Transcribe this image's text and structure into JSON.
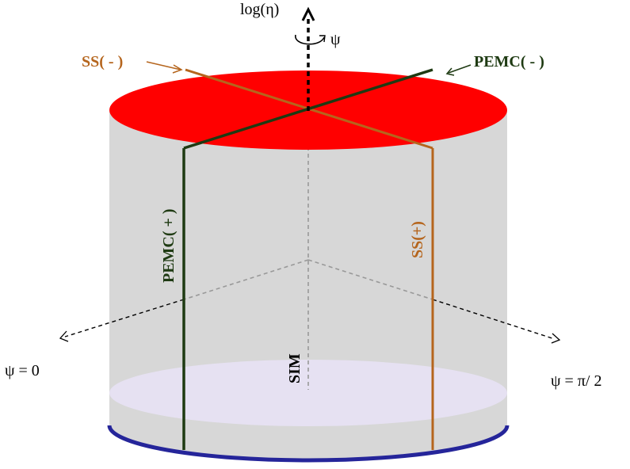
{
  "labels": {
    "axis": "log(η)",
    "rotation": "ψ",
    "ss_minus": "SS( - )",
    "pemc_minus": "PEMC( - )",
    "pemc_plus": "PEMC( + )",
    "ss_plus": "SS(+)",
    "sim": "SIM",
    "psi_zero": "ψ = 0",
    "psi_half_pi": "ψ =  π/ 2"
  },
  "colors": {
    "top_disk": "#ff0000",
    "cylinder_side": "#d3d3d3",
    "bottom_disk": "#e6e1f2",
    "bottom_rim": "#25259a",
    "ss": "#b5651d",
    "pemc": "#1e3a12",
    "axis": "#000000",
    "hidden_lines": "#999999"
  }
}
